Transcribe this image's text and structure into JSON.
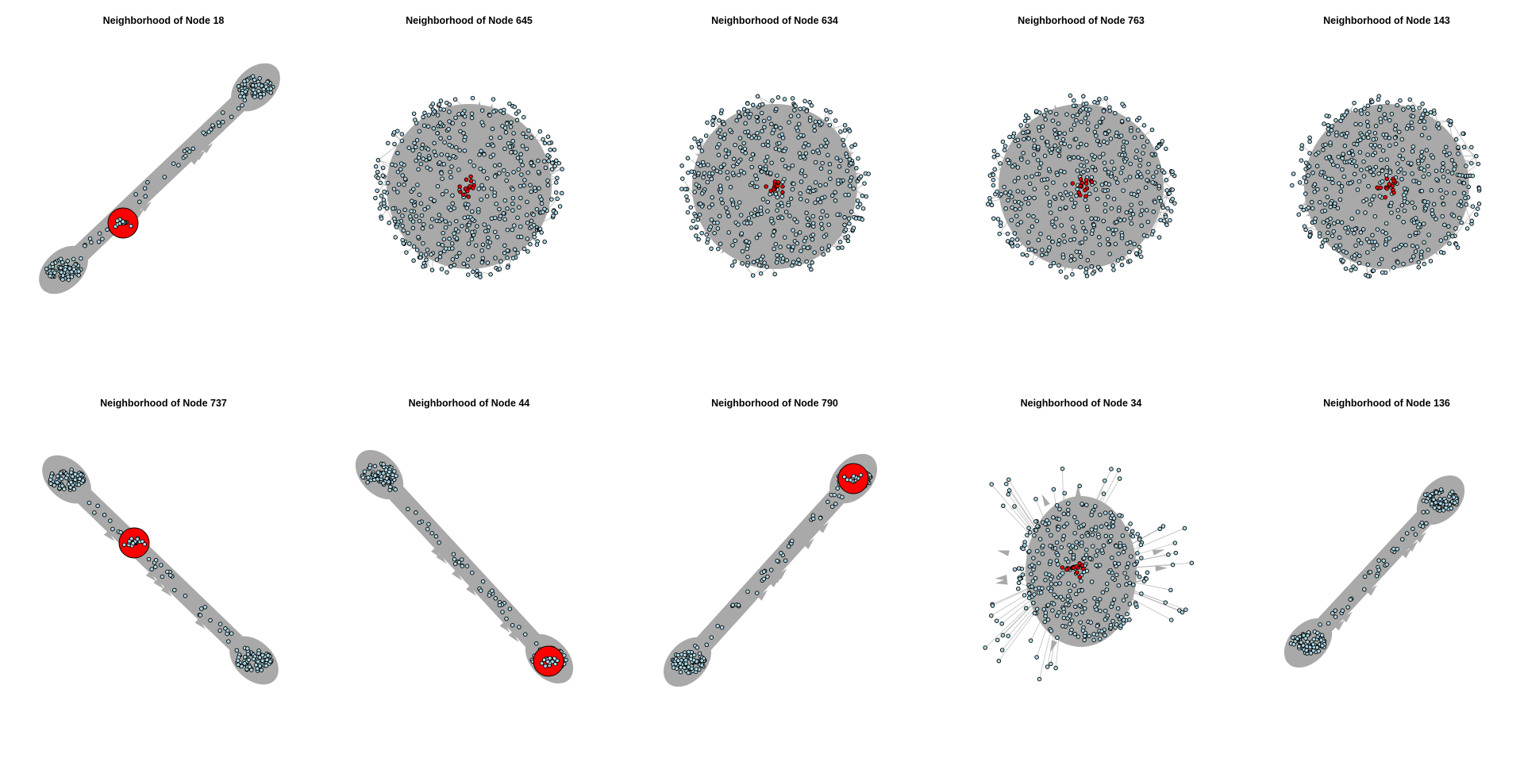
{
  "figure": {
    "colors": {
      "edge": "#a9a9a9",
      "node_fill": "#add8e6",
      "node_stroke": "#000000",
      "highlight": "#ff0000",
      "title": "#000000"
    },
    "panels": [
      {
        "title": "Neighborhood of Node 18",
        "layout": "dumbbell",
        "dir": "diag-up",
        "highlight": "ring"
      },
      {
        "title": "Neighborhood of Node 645",
        "layout": "hairball",
        "highlight": "cluster"
      },
      {
        "title": "Neighborhood of Node 634",
        "layout": "hairball",
        "highlight": "cluster"
      },
      {
        "title": "Neighborhood of Node 763",
        "layout": "hairball",
        "highlight": "cluster"
      },
      {
        "title": "Neighborhood of Node 143",
        "layout": "hairball",
        "highlight": "cluster"
      },
      {
        "title": "Neighborhood of Node 737",
        "layout": "dumbbell",
        "dir": "diag-down",
        "highlight": "ring"
      },
      {
        "title": "Neighborhood of Node 44",
        "layout": "dumbbell",
        "dir": "diag-down",
        "highlight": "ring"
      },
      {
        "title": "Neighborhood of Node 790",
        "layout": "dumbbell",
        "dir": "diag-up",
        "highlight": "ring"
      },
      {
        "title": "Neighborhood of Node 34",
        "layout": "radial-spread",
        "highlight": "cluster"
      },
      {
        "title": "Neighborhood of Node 136",
        "layout": "dumbbell",
        "dir": "diag-up",
        "highlight": "none"
      }
    ]
  }
}
